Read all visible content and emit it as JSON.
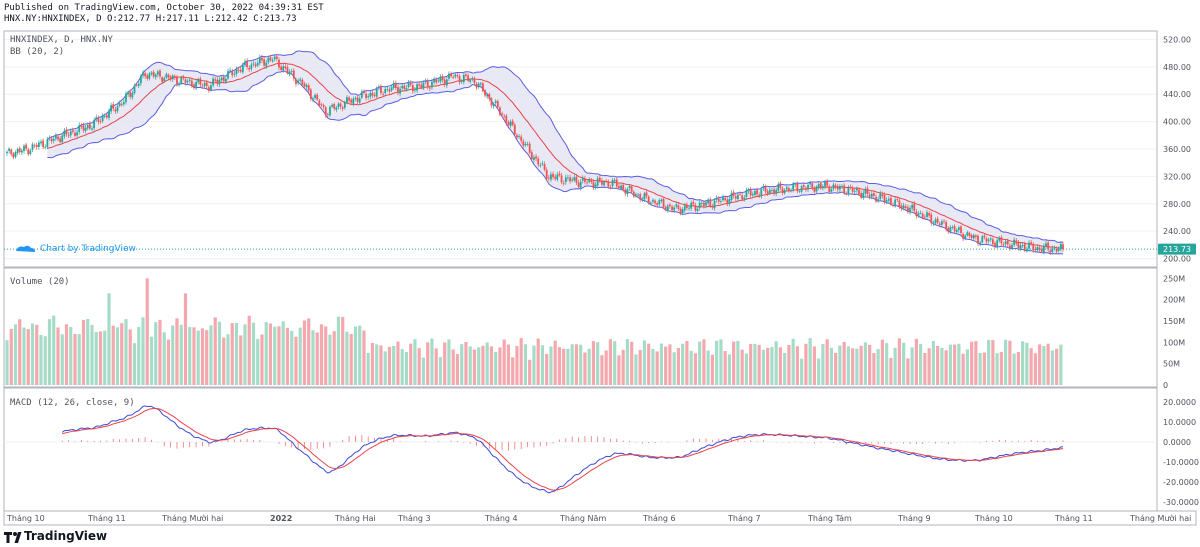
{
  "header": {
    "published": "Published on TradingView.com, October 30, 2022 04:39:31 EST",
    "ohlc": "HNX.NY:HNXINDEX, D O:212.77 H:217.11 L:212.42 C:213.73"
  },
  "footer": {
    "logo_text": "TradingView"
  },
  "colors": {
    "up": "#26a69a",
    "down": "#ef5350",
    "up_volume": "#a5dcc8",
    "down_volume": "#f5a7ae",
    "bb_basis": "#e8434a",
    "bb_band": "#5b5ee0",
    "bb_fill": "#e3e3f3",
    "macd": "#3c4bd6",
    "signal": "#e8434a",
    "hist": "#ef5350",
    "grid": "#eef0f3",
    "last_price_bg": "#26a69a"
  },
  "chart_data": [
    {
      "type": "candlestick",
      "pane": "price",
      "title": "HNXINDEX, D, HNX.NY",
      "indicator": "BB (20, 2)",
      "y_ticks": [
        "520.00",
        "480.00",
        "440.00",
        "400.00",
        "360.00",
        "320.00",
        "280.00",
        "240.00",
        "200.00"
      ],
      "ylim": [
        195,
        525
      ],
      "last_price": "213.73",
      "watermark": "Chart by TradingView",
      "anchor_points": {
        "x_index": [
          0,
          10,
          20,
          40,
          55,
          65,
          75,
          85,
          95,
          110,
          125,
          140,
          150,
          165,
          180,
          195,
          210,
          220,
          232,
          245,
          255,
          270,
          285,
          300,
          315,
          330,
          345,
          355,
          370,
          385,
          400,
          415,
          428,
          440,
          455,
          470,
          485,
          497
        ],
        "close": [
          353,
          360,
          372,
          395,
          430,
          470,
          465,
          458,
          452,
          478,
          492,
          452,
          415,
          435,
          448,
          452,
          466,
          460,
          415,
          360,
          320,
          312,
          310,
          288,
          272,
          280,
          292,
          298,
          303,
          306,
          298,
          285,
          268,
          250,
          230,
          222,
          215,
          213.73
        ]
      }
    },
    {
      "type": "bar",
      "pane": "volume",
      "title": "Volume (20)",
      "y_ticks": [
        "250M",
        "200M",
        "150M",
        "100M",
        "50M",
        "0"
      ],
      "ylim": [
        0,
        265
      ]
    },
    {
      "type": "line",
      "pane": "macd",
      "title": "MACD (12, 26, close, 9)",
      "y_ticks": [
        "20.0000",
        "10.0000",
        "0.0000",
        "-10.0000",
        "-20.0000",
        "-30.0000"
      ],
      "ylim": [
        -33,
        25
      ]
    }
  ],
  "time_axis": [
    "Tháng 10",
    "Tháng 11",
    "Tháng Mười hai",
    "2022",
    "Tháng Hai",
    "Tháng 3",
    "Tháng 4",
    "Tháng Năm",
    "Tháng 6",
    "Tháng 7",
    "Tháng Tám",
    "Tháng 9",
    "Tháng 10",
    "Tháng 11",
    "Tháng Mười hai"
  ]
}
